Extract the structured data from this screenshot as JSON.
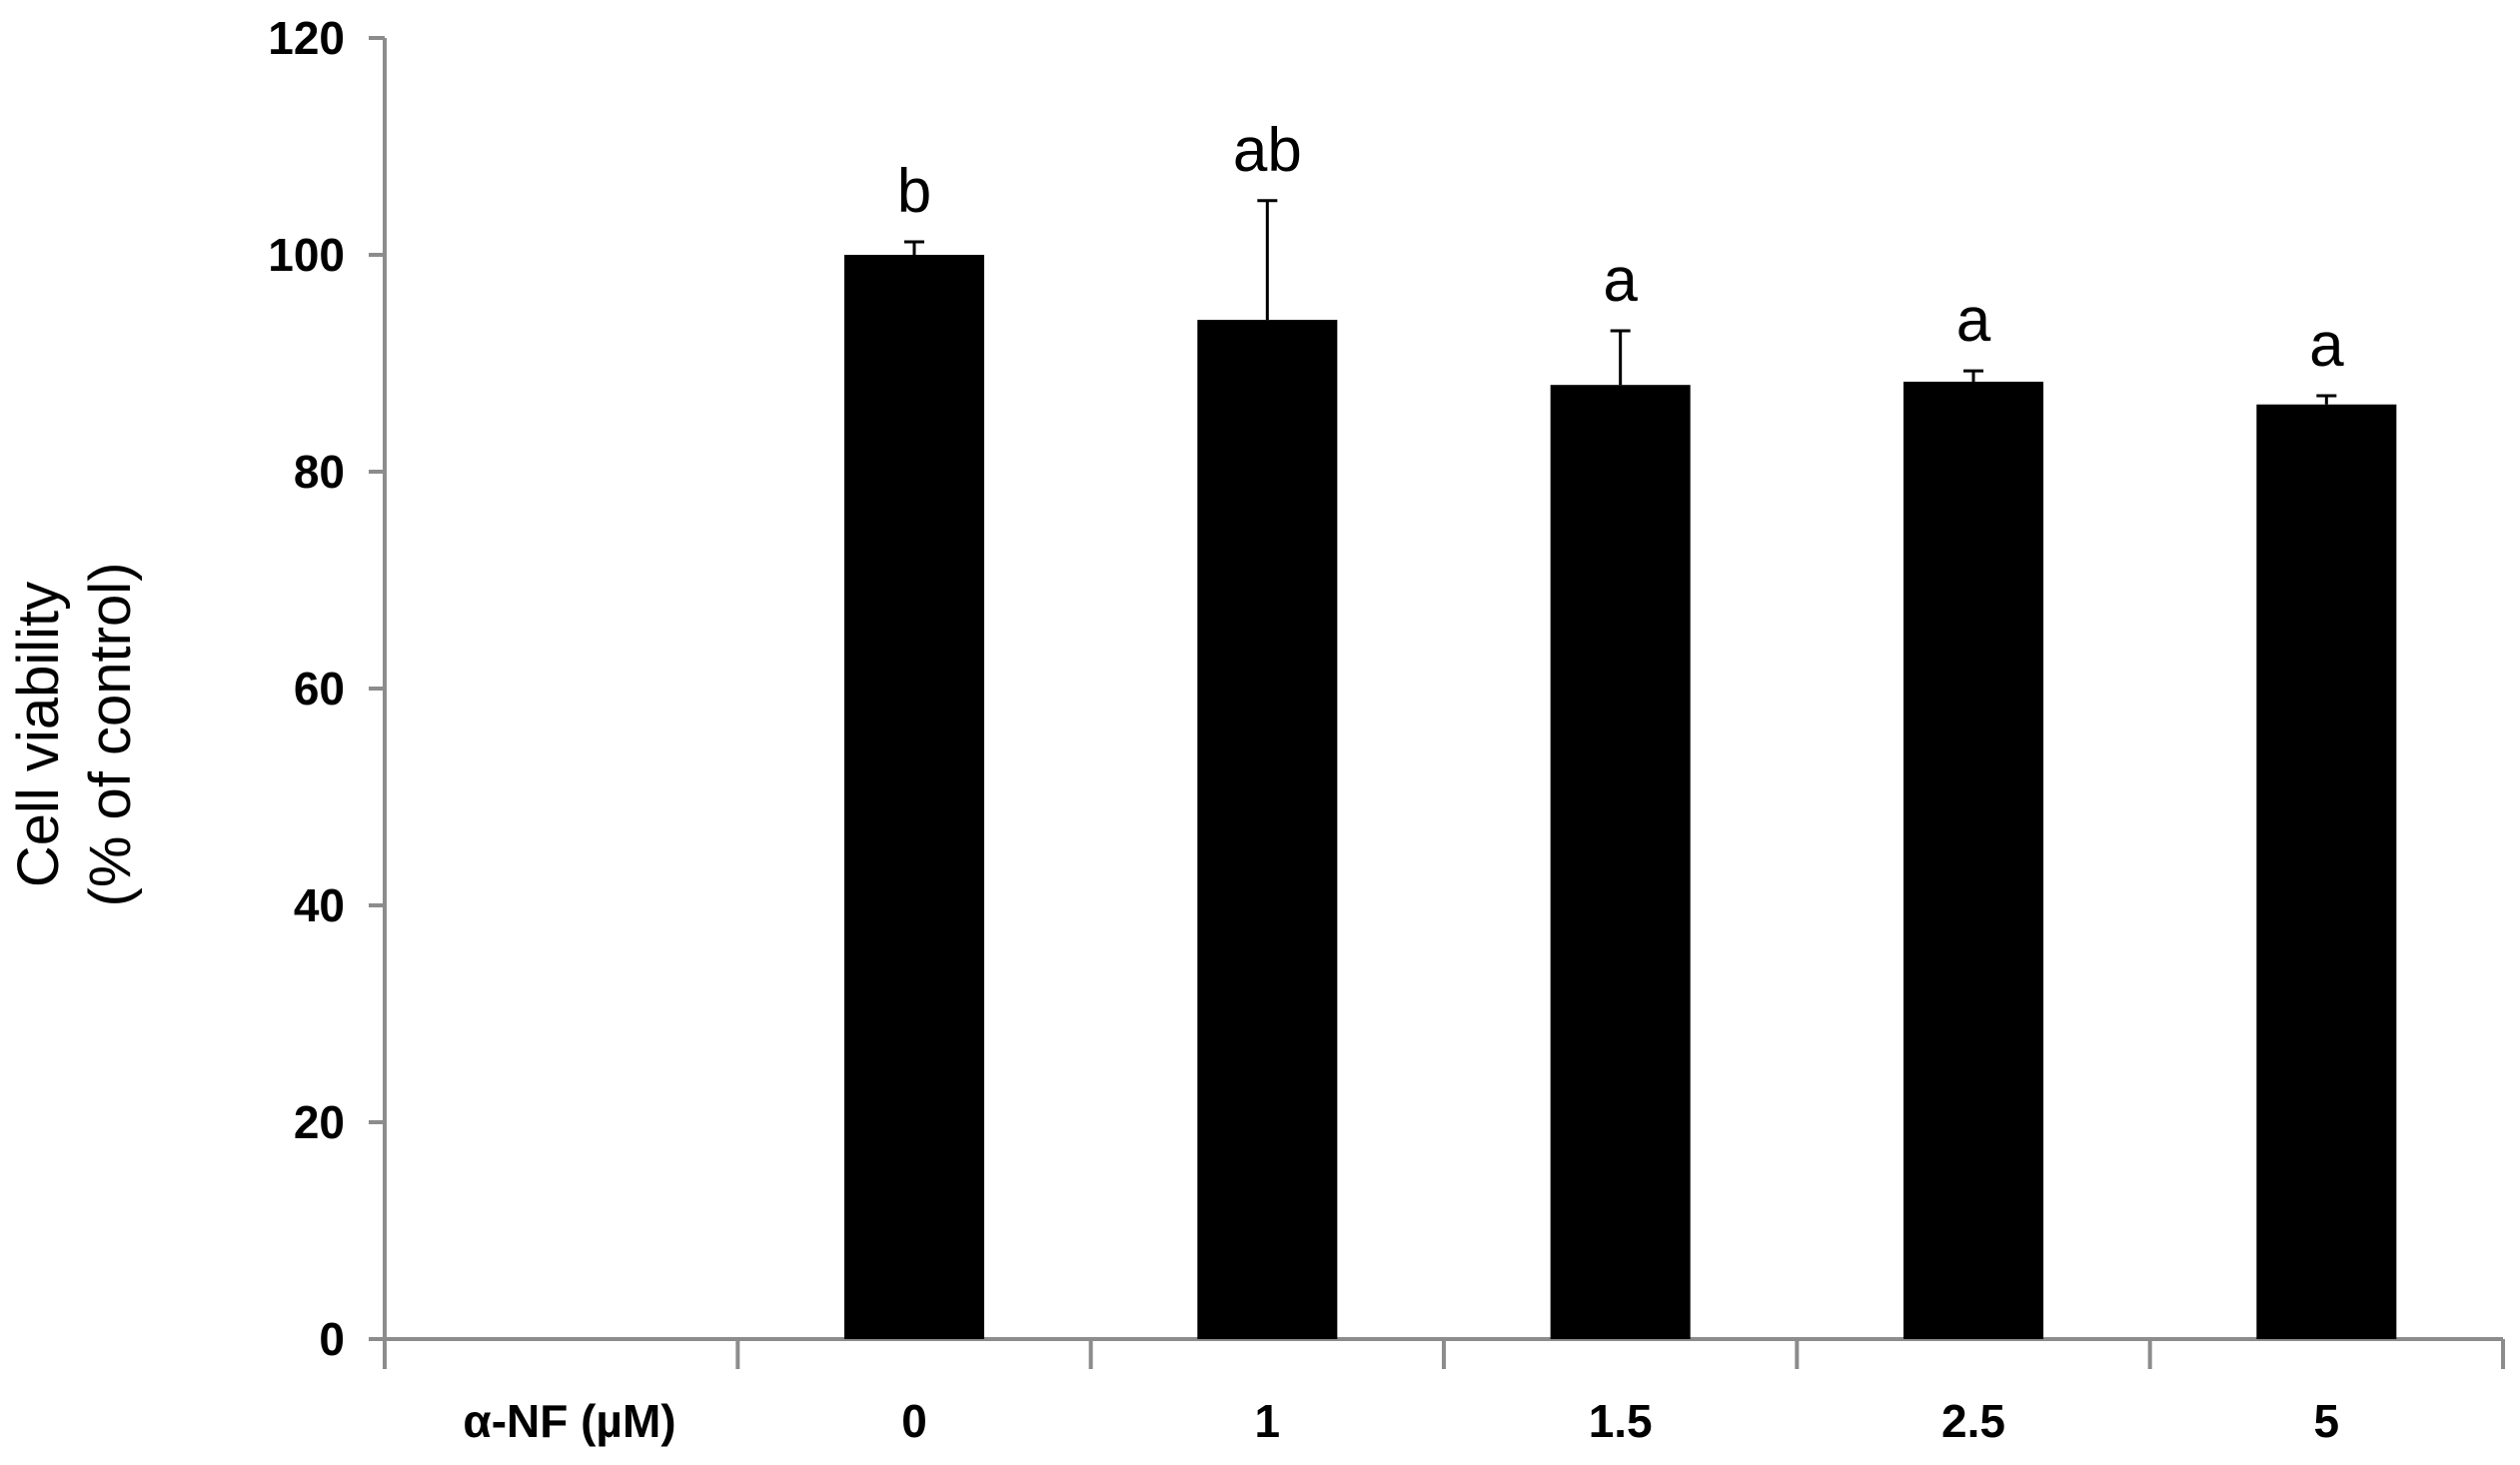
{
  "chart_data": {
    "type": "bar",
    "row_label": "α-NF (µM)",
    "categories": [
      "0",
      "1",
      "1.5",
      "2.5",
      "5"
    ],
    "values": [
      100,
      94,
      88,
      88.3,
      86.2
    ],
    "errors": [
      1.2,
      11,
      5,
      1,
      0.8
    ],
    "significance": [
      "b",
      "ab",
      "a",
      "a",
      "a"
    ],
    "ylabel_line1": "Cell viability",
    "ylabel_line2": "(% of control)",
    "ylim": [
      0,
      120
    ],
    "yticks": [
      0,
      20,
      40,
      60,
      80,
      100,
      120
    ],
    "bar_color": "#000000",
    "grid": false
  }
}
